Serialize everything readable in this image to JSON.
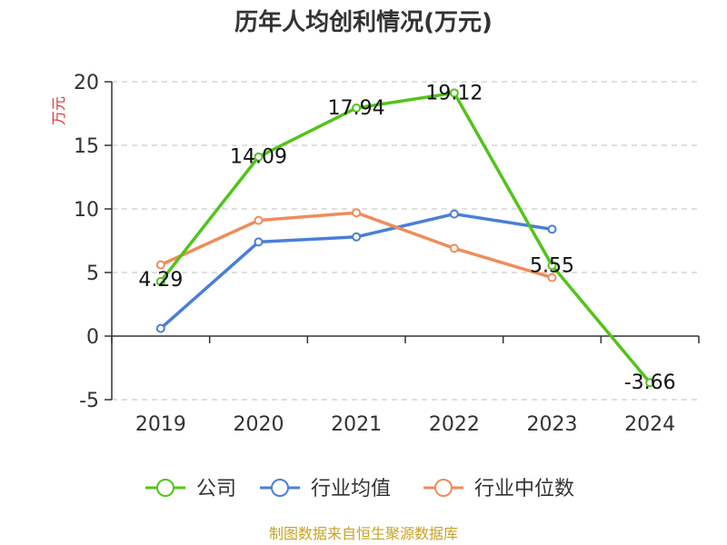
{
  "chart_data": {
    "type": "line",
    "title": "历年人均创利情况(万元)",
    "ylabel": "万元",
    "xlabel": "",
    "categories": [
      "2019",
      "2020",
      "2021",
      "2022",
      "2023",
      "2024"
    ],
    "ylim": [
      -5,
      20
    ],
    "yticks": [
      -5,
      0,
      5,
      10,
      15,
      20
    ],
    "grid": true,
    "legend_position": "bottom",
    "series": [
      {
        "name": "公司",
        "color": "#52c41a",
        "values": [
          4.29,
          14.09,
          17.94,
          19.12,
          5.55,
          -3.66
        ],
        "labels": [
          "4.29",
          "14.09",
          "17.94",
          "19.12",
          "5.55",
          "-3.66"
        ]
      },
      {
        "name": "行业均值",
        "color": "#4a7fd6",
        "values": [
          0.6,
          7.4,
          7.8,
          9.6,
          8.4,
          null
        ]
      },
      {
        "name": "行业中位数",
        "color": "#f08c5a",
        "values": [
          5.6,
          9.1,
          9.7,
          6.9,
          4.6,
          null
        ]
      }
    ]
  },
  "footer": {
    "source": "制图数据来自恒生聚源数据库"
  }
}
